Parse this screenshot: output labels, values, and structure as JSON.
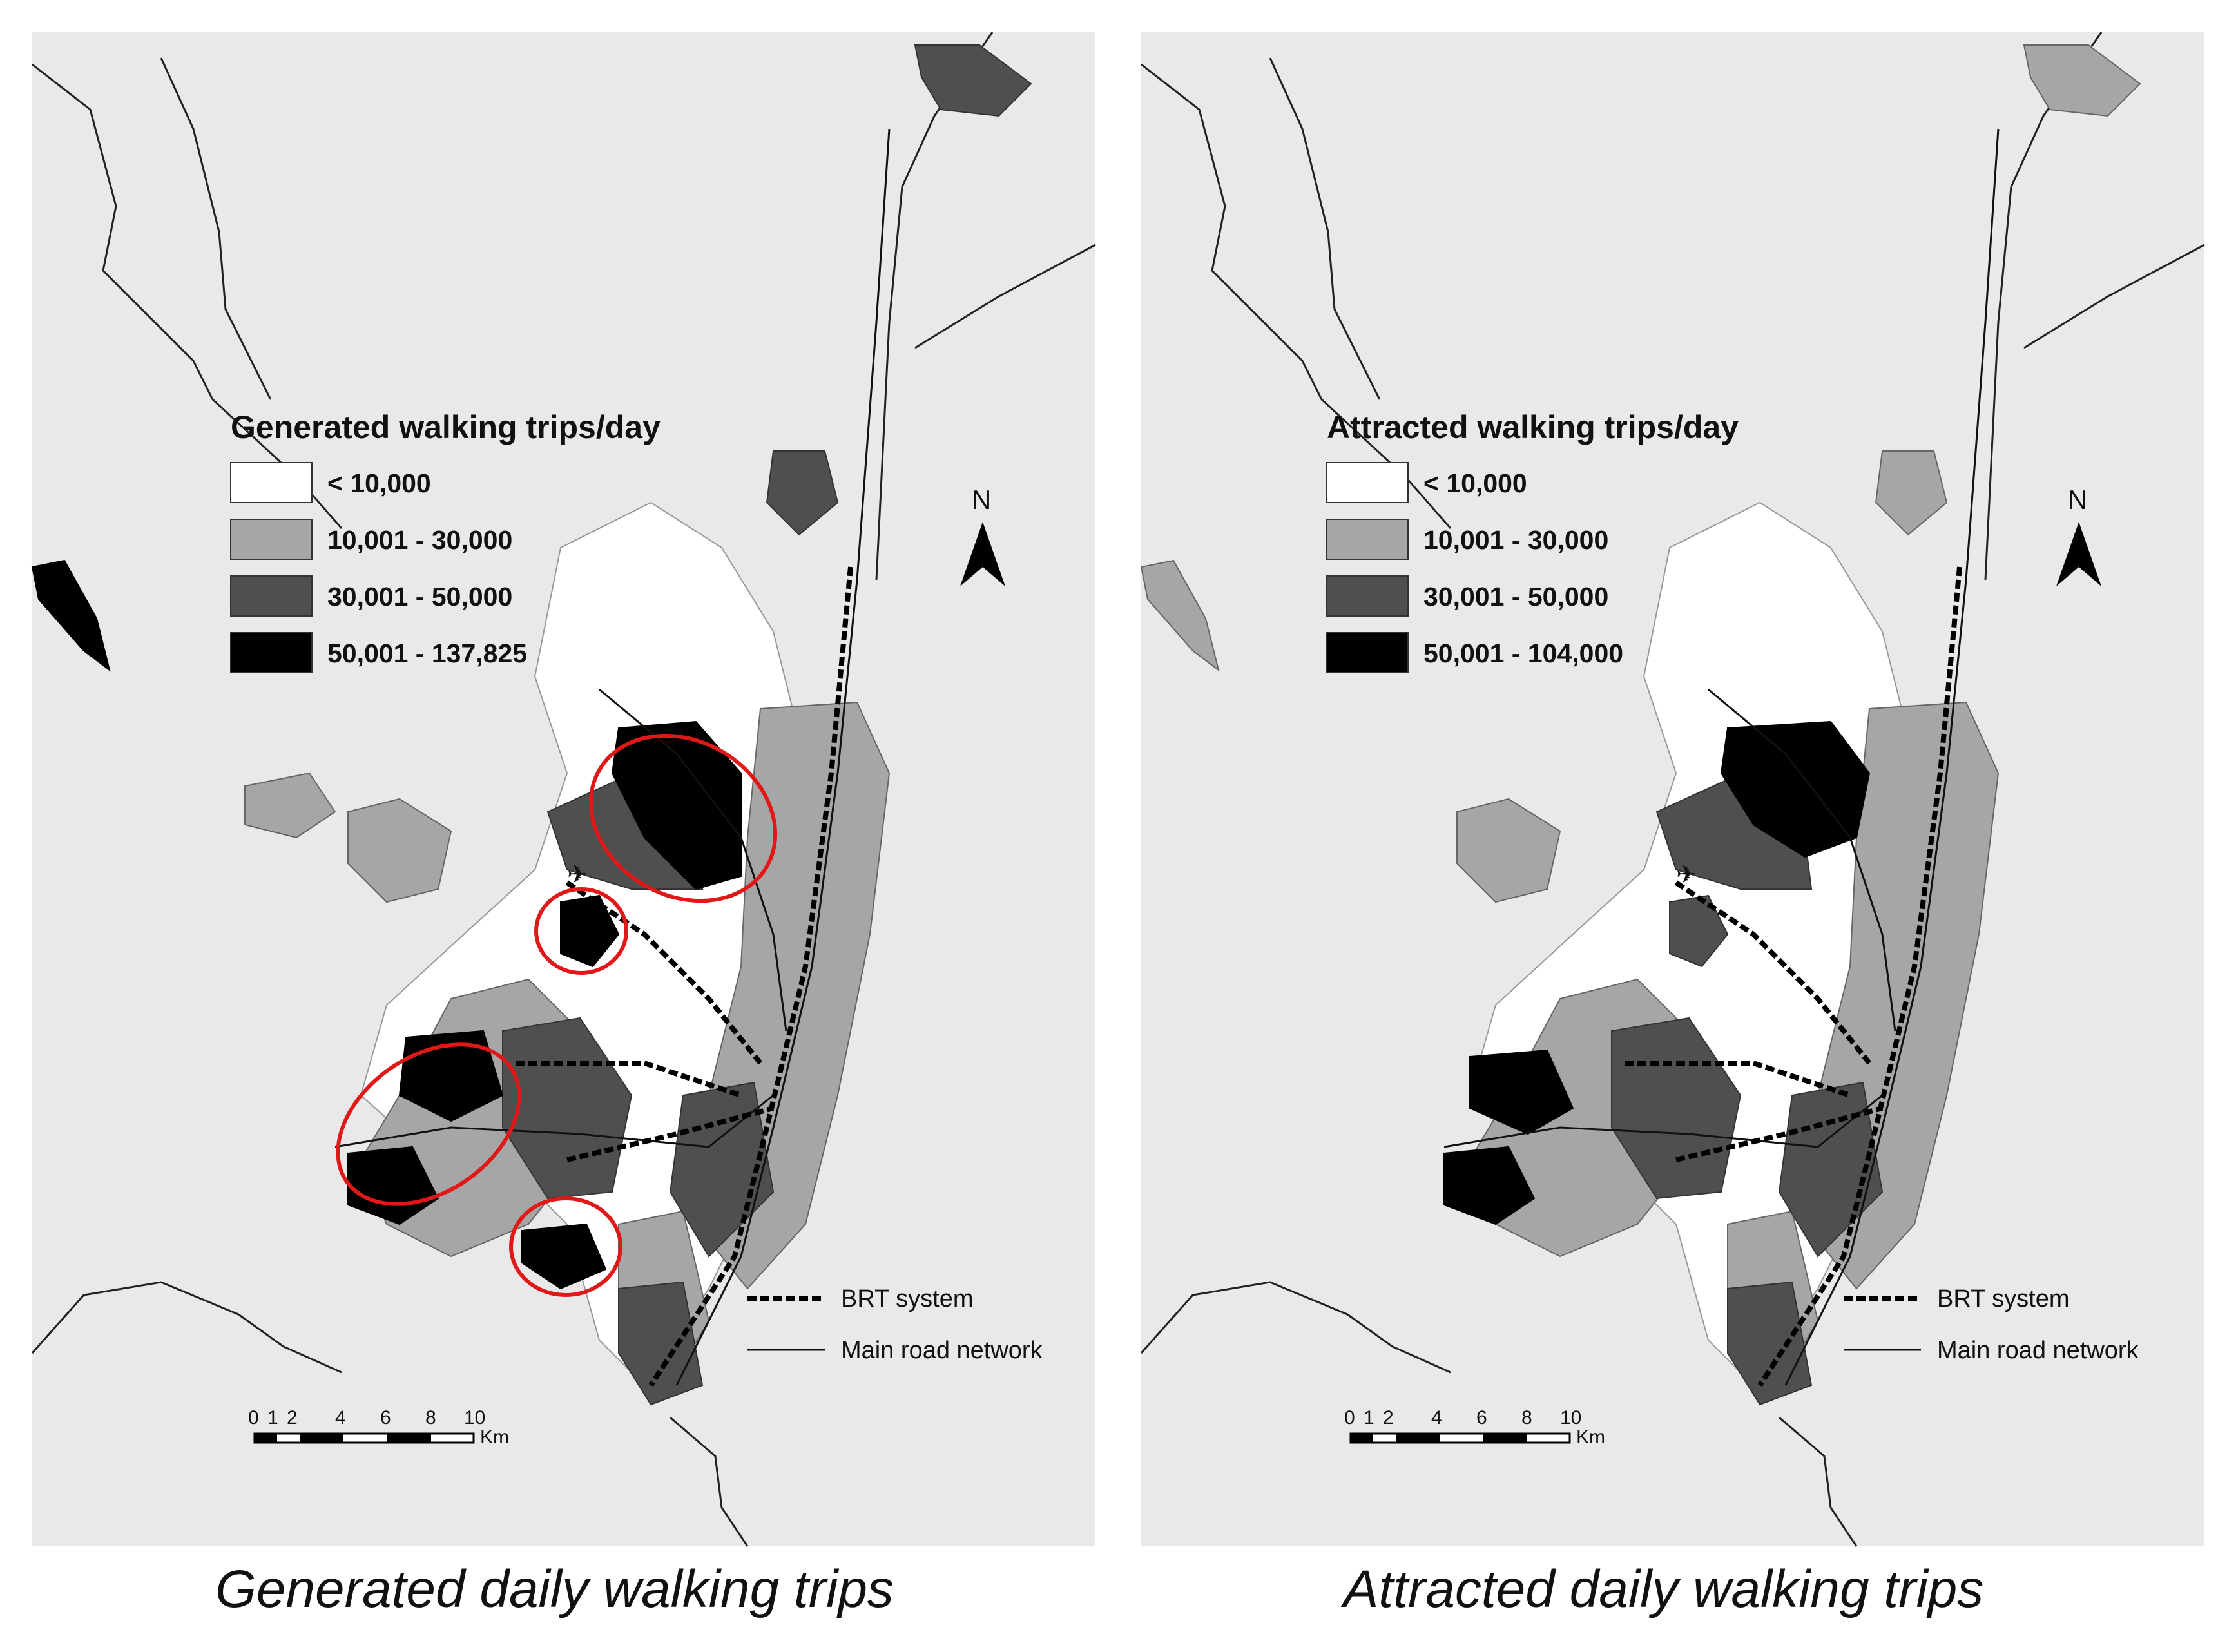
{
  "colors": {
    "class_1": "#ffffff",
    "class_2": "#a6a6a6",
    "class_3": "#4f4f4f",
    "class_4": "#000000",
    "background_zone": "#e9e9e9",
    "highlight_circle": "#e01818"
  },
  "panels": [
    {
      "caption": "Generated daily walking trips",
      "legend": {
        "title": "Generated walking trips/day",
        "classes": [
          {
            "label": "< 10,000"
          },
          {
            "label": "10,001 - 30,000"
          },
          {
            "label": "30,001 - 50,000"
          },
          {
            "label": "50,001 - 137,825"
          }
        ]
      },
      "lines_legend": {
        "brt": "BRT system",
        "roads": "Main road network"
      },
      "north": "N",
      "scale": {
        "ticks": [
          "0",
          "1",
          "2",
          "4",
          "6",
          "8",
          "10"
        ],
        "unit": "Km"
      },
      "highlight_circles_count": 4
    },
    {
      "caption": "Attracted daily walking trips",
      "legend": {
        "title": "Attracted walking trips/day",
        "classes": [
          {
            "label": "< 10,000"
          },
          {
            "label": "10,001 - 30,000"
          },
          {
            "label": "30,001 - 50,000"
          },
          {
            "label": "50,001 - 104,000"
          }
        ]
      },
      "lines_legend": {
        "brt": "BRT system",
        "roads": "Main road network"
      },
      "north": "N",
      "scale": {
        "ticks": [
          "0",
          "1",
          "2",
          "4",
          "6",
          "8",
          "10"
        ],
        "unit": "Km"
      },
      "highlight_circles_count": 0
    }
  ]
}
